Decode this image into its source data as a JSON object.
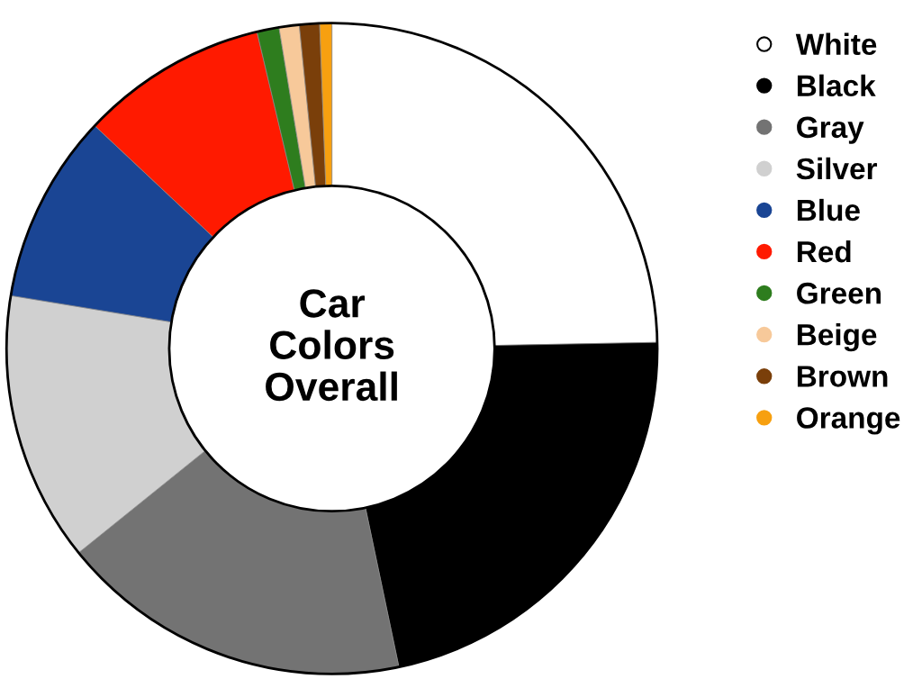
{
  "chart_data": {
    "type": "donut",
    "title": "Car Colors Overall",
    "categories": [
      "White",
      "Black",
      "Gray",
      "Silver",
      "Blue",
      "Red",
      "Green",
      "Beige",
      "Brown",
      "Orange"
    ],
    "values": [
      24.7,
      22.0,
      17.5,
      13.4,
      9.4,
      9.3,
      1.1,
      1.0,
      1.0,
      0.6
    ],
    "colors": [
      "#ffffff",
      "#000000",
      "#737373",
      "#d0d0d0",
      "#1a4594",
      "#ff1a00",
      "#2e7d1e",
      "#f7c99a",
      "#7a3f0a",
      "#f7a010"
    ],
    "legend": "right",
    "marker": "circle"
  }
}
